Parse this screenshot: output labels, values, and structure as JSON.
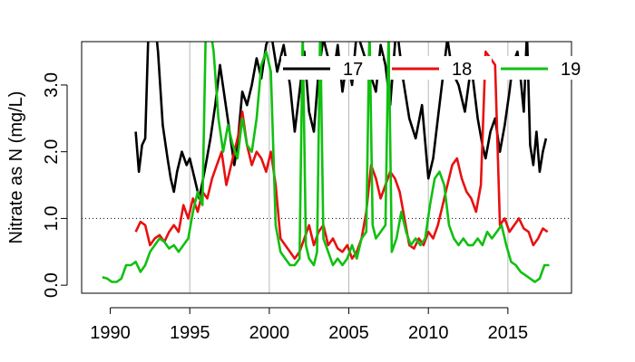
{
  "chart_data": {
    "type": "line",
    "title": "",
    "xlabel": "",
    "ylabel": "Nitrate as N (mg/L)",
    "xlim": [
      1988.2,
      2019.0
    ],
    "ylim": [
      -0.12,
      3.65
    ],
    "x_ticks": [
      1990,
      1995,
      2000,
      2005,
      2010,
      2015
    ],
    "x_tick_labels": [
      "1990",
      "1995",
      "2000",
      "2005",
      "2010",
      "2015"
    ],
    "y_ticks": [
      0.0,
      1.0,
      2.0,
      3.0
    ],
    "y_tick_labels": [
      "0.0",
      "1.0",
      "2.0",
      "3.0"
    ],
    "vertical_reference_lines": [
      1995,
      2000,
      2005,
      2010,
      2015
    ],
    "reference_line": {
      "y": 1.0,
      "style": "dotted"
    },
    "legend_position": "top-right",
    "series": [
      {
        "name": "17",
        "color": "#000000",
        "x": [
          1991.6,
          1991.8,
          1992.0,
          1992.2,
          1992.4,
          1992.7,
          1993.0,
          1993.3,
          1993.6,
          1993.8,
          1994.0,
          1994.2,
          1994.5,
          1994.8,
          1995.0,
          1995.3,
          1995.6,
          1996.0,
          1996.3,
          1996.6,
          1996.9,
          1997.2,
          1997.5,
          1997.8,
          1998.0,
          1998.3,
          1998.6,
          1998.9,
          1999.2,
          1999.5,
          1999.8,
          2000.1,
          2000.5,
          2000.9,
          2001.3,
          2001.6,
          2001.9,
          2002.2,
          2002.5,
          2002.8,
          2003.1,
          2003.4,
          2003.7,
          2004.0,
          2004.3,
          2004.6,
          2004.9,
          2005.2,
          2005.5,
          2005.9,
          2006.3,
          2006.7,
          2007.0,
          2007.3,
          2007.6,
          2008.0,
          2008.4,
          2008.8,
          2009.2,
          2009.6,
          2010.0,
          2010.3,
          2010.6,
          2010.9,
          2011.2,
          2011.5,
          2011.9,
          2012.3,
          2012.7,
          2013.1,
          2013.4,
          2013.6,
          2013.9,
          2014.2,
          2014.5,
          2014.8,
          2015.1,
          2015.3,
          2015.6,
          2015.8,
          2016.0,
          2016.2,
          2016.4,
          2016.6,
          2016.8,
          2017.0,
          2017.2,
          2017.4
        ],
        "y": [
          2.3,
          1.7,
          2.1,
          2.2,
          3.8,
          4.2,
          3.5,
          2.4,
          1.9,
          1.6,
          1.4,
          1.7,
          2.0,
          1.8,
          1.9,
          1.6,
          1.3,
          1.8,
          2.2,
          2.7,
          3.3,
          2.8,
          2.3,
          1.8,
          2.1,
          2.9,
          2.7,
          3.0,
          3.4,
          3.1,
          3.6,
          3.8,
          3.2,
          3.6,
          3.0,
          2.3,
          2.9,
          3.5,
          2.6,
          2.3,
          3.2,
          3.7,
          3.4,
          3.1,
          3.6,
          2.9,
          3.4,
          3.0,
          3.8,
          3.5,
          3.2,
          2.9,
          3.6,
          3.3,
          2.7,
          3.9,
          3.1,
          2.5,
          2.2,
          2.7,
          1.6,
          1.9,
          2.5,
          3.1,
          3.7,
          3.2,
          3.0,
          2.6,
          3.3,
          2.5,
          2.1,
          1.9,
          2.3,
          2.5,
          2.0,
          2.4,
          2.9,
          3.3,
          3.5,
          3.1,
          2.6,
          3.8,
          2.1,
          1.8,
          2.3,
          1.7,
          2.0,
          2.2
        ]
      },
      {
        "name": "18",
        "color": "#e81010",
        "x": [
          1991.6,
          1991.9,
          1992.2,
          1992.5,
          1992.8,
          1993.1,
          1993.4,
          1993.7,
          1994.0,
          1994.3,
          1994.6,
          1994.9,
          1995.2,
          1995.5,
          1995.8,
          1996.1,
          1996.4,
          1996.7,
          1997.0,
          1997.3,
          1997.6,
          1997.9,
          1998.1,
          1998.3,
          1998.6,
          1998.9,
          1999.2,
          1999.5,
          1999.8,
          2000.1,
          2000.4,
          2000.7,
          2001.0,
          2001.3,
          2001.6,
          2001.9,
          2002.2,
          2002.5,
          2002.8,
          2003.1,
          2003.4,
          2003.7,
          2004.0,
          2004.3,
          2004.6,
          2004.9,
          2005.2,
          2005.5,
          2005.8,
          2006.1,
          2006.4,
          2006.7,
          2007.0,
          2007.3,
          2007.6,
          2007.9,
          2008.2,
          2008.5,
          2008.8,
          2009.1,
          2009.4,
          2009.7,
          2010.0,
          2010.3,
          2010.6,
          2010.9,
          2011.2,
          2011.5,
          2011.8,
          2012.1,
          2012.4,
          2012.7,
          2013.0,
          2013.3,
          2013.6,
          2013.9,
          2014.2,
          2014.5,
          2014.8,
          2015.1,
          2015.4,
          2015.7,
          2016.0,
          2016.3,
          2016.6,
          2016.9,
          2017.2,
          2017.5
        ],
        "y": [
          0.8,
          0.95,
          0.9,
          0.6,
          0.7,
          0.75,
          0.65,
          0.8,
          0.9,
          0.8,
          1.2,
          1.0,
          1.3,
          1.1,
          1.4,
          1.3,
          1.6,
          1.8,
          2.0,
          1.5,
          1.8,
          2.1,
          2.3,
          2.6,
          2.1,
          1.8,
          2.0,
          1.9,
          1.7,
          2.0,
          1.5,
          0.7,
          0.6,
          0.5,
          0.4,
          0.5,
          0.7,
          0.9,
          0.6,
          0.8,
          0.9,
          0.6,
          0.7,
          0.55,
          0.5,
          0.6,
          0.4,
          0.5,
          0.7,
          1.1,
          1.8,
          1.6,
          1.3,
          1.5,
          1.7,
          1.6,
          1.4,
          1.0,
          0.6,
          0.55,
          0.7,
          0.6,
          0.8,
          0.7,
          0.9,
          1.2,
          1.5,
          1.8,
          1.9,
          1.6,
          1.4,
          1.3,
          1.1,
          1.5,
          3.5,
          3.4,
          3.3,
          0.9,
          1.0,
          0.8,
          0.9,
          1.0,
          0.85,
          0.8,
          0.6,
          0.7,
          0.85,
          0.8
        ]
      },
      {
        "name": "19",
        "color": "#10c010",
        "x": [
          1989.5,
          1989.8,
          1990.1,
          1990.4,
          1990.7,
          1991.0,
          1991.3,
          1991.6,
          1991.9,
          1992.2,
          1992.5,
          1992.8,
          1993.1,
          1993.4,
          1993.7,
          1994.0,
          1994.3,
          1994.6,
          1994.9,
          1995.2,
          1995.5,
          1995.8,
          1996.0,
          1996.2,
          1996.5,
          1996.8,
          1997.1,
          1997.4,
          1997.7,
          1998.0,
          1998.3,
          1998.6,
          1998.9,
          1999.2,
          1999.5,
          1999.8,
          2000.1,
          2000.4,
          2000.7,
          2001.0,
          2001.3,
          2001.6,
          2001.9,
          2002.1,
          2002.3,
          2002.5,
          2002.8,
          2003.0,
          2003.2,
          2003.4,
          2003.7,
          2004.0,
          2004.3,
          2004.6,
          2004.9,
          2005.2,
          2005.5,
          2005.8,
          2006.1,
          2006.3,
          2006.5,
          2006.7,
          2007.0,
          2007.3,
          2007.5,
          2007.7,
          2008.0,
          2008.3,
          2008.6,
          2008.9,
          2009.2,
          2009.5,
          2009.8,
          2010.1,
          2010.4,
          2010.7,
          2011.0,
          2011.3,
          2011.6,
          2011.9,
          2012.2,
          2012.5,
          2012.8,
          2013.1,
          2013.4,
          2013.7,
          2014.0,
          2014.3,
          2014.6,
          2014.9,
          2015.2,
          2015.5,
          2015.8,
          2016.1,
          2016.4,
          2016.7,
          2017.0,
          2017.3,
          2017.6
        ],
        "y": [
          0.12,
          0.1,
          0.05,
          0.05,
          0.1,
          0.3,
          0.3,
          0.35,
          0.2,
          0.3,
          0.5,
          0.6,
          0.7,
          0.65,
          0.55,
          0.6,
          0.5,
          0.6,
          0.7,
          1.1,
          1.4,
          1.2,
          3.8,
          4.0,
          3.5,
          2.5,
          2.0,
          2.4,
          2.1,
          1.9,
          2.5,
          2.1,
          2.0,
          2.5,
          3.3,
          3.5,
          3.2,
          0.9,
          0.5,
          0.4,
          0.3,
          0.3,
          0.4,
          3.8,
          0.6,
          0.4,
          0.3,
          0.5,
          3.9,
          0.7,
          0.5,
          0.3,
          0.4,
          0.3,
          0.4,
          0.6,
          0.4,
          0.7,
          0.8,
          3.9,
          0.9,
          0.7,
          0.8,
          0.9,
          3.8,
          0.5,
          0.7,
          1.1,
          0.8,
          0.6,
          0.7,
          0.6,
          0.7,
          1.2,
          1.6,
          1.7,
          1.5,
          0.9,
          0.7,
          0.6,
          0.7,
          0.6,
          0.6,
          0.7,
          0.6,
          0.8,
          0.7,
          0.8,
          0.9,
          0.6,
          0.35,
          0.3,
          0.2,
          0.15,
          0.1,
          0.05,
          0.1,
          0.3,
          0.3
        ]
      }
    ]
  }
}
